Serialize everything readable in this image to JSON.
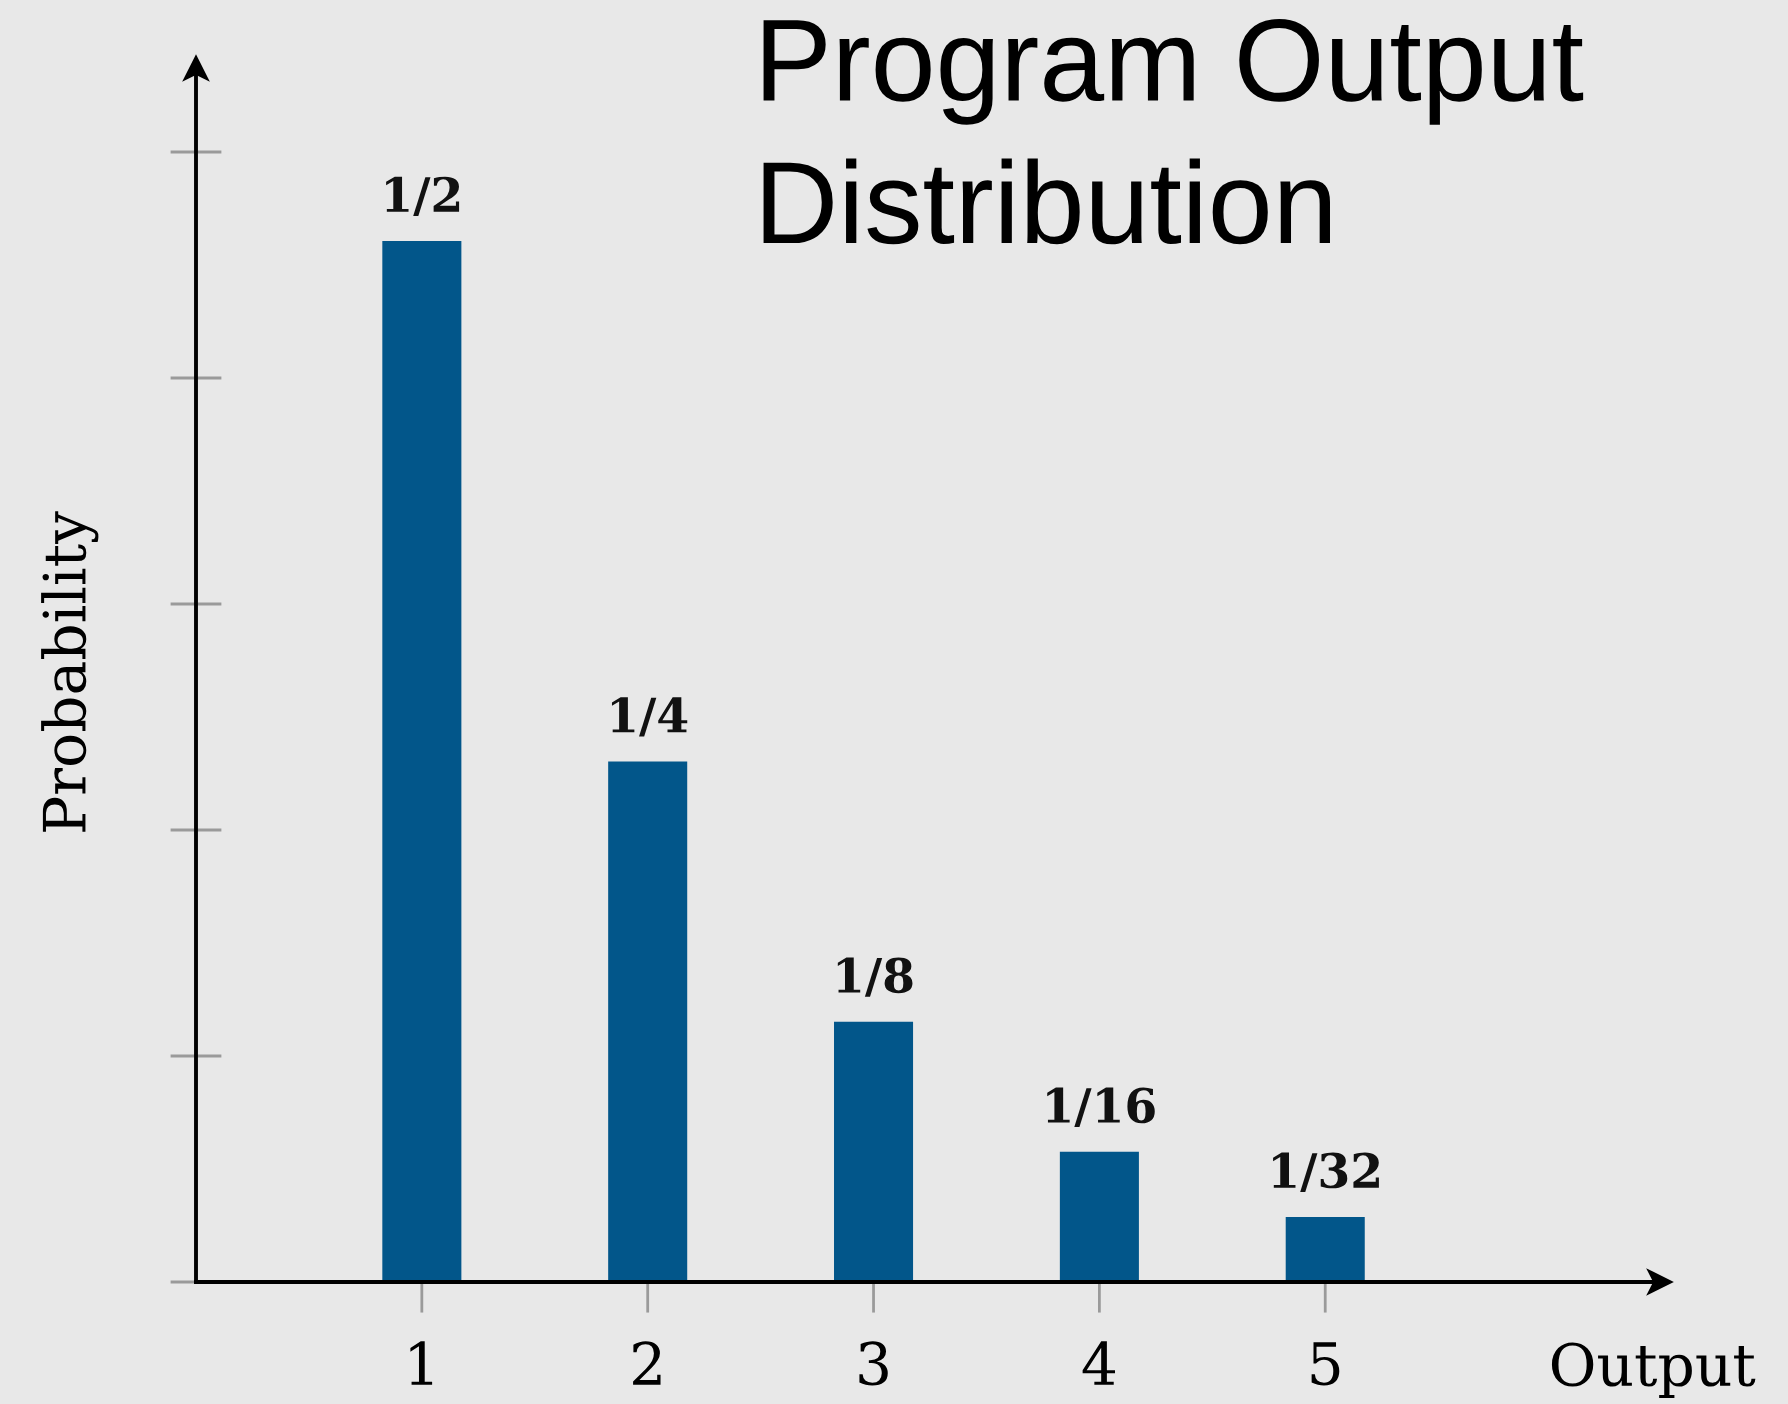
{
  "chart_data": {
    "type": "bar",
    "title": "Program Output Distribution",
    "xlabel": "Output",
    "ylabel": "Probability",
    "x": [
      1,
      2,
      3,
      4,
      5
    ],
    "values": [
      0.5,
      0.25,
      0.125,
      0.0625,
      0.03125
    ],
    "value_labels": [
      "1/2",
      "1/4",
      "1/8",
      "1/16",
      "1/32"
    ],
    "color": "#02568a",
    "xlim": [
      0,
      6.5
    ],
    "xticks": [
      1,
      2,
      3,
      4,
      5
    ],
    "tick_labels": "x"
  }
}
